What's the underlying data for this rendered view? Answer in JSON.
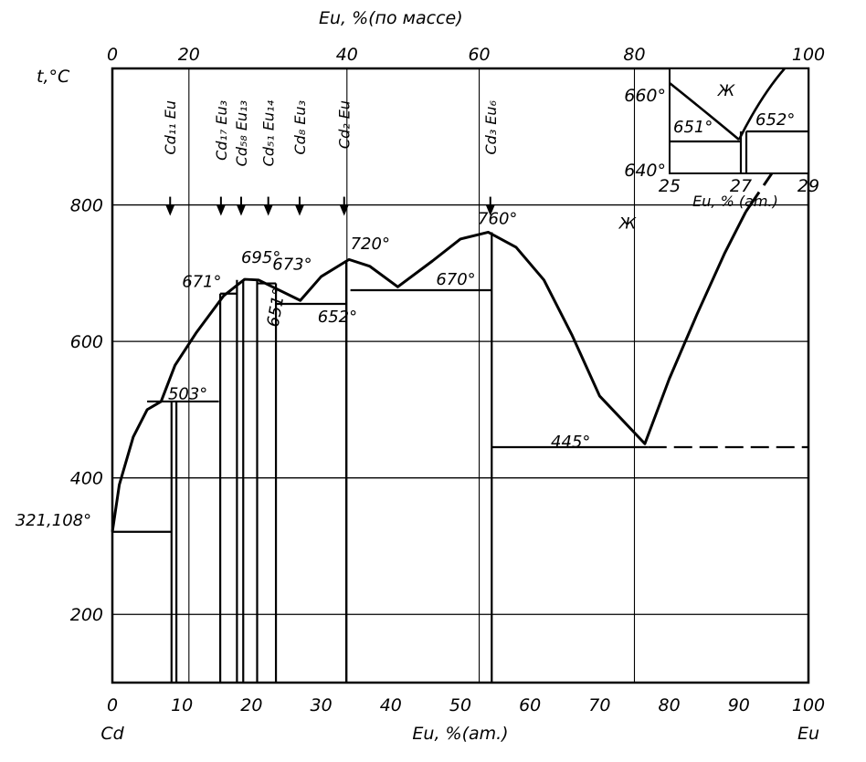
{
  "chart_data": {
    "type": "line",
    "title": "",
    "top_axis_label": "Eu, %(по массе)",
    "xlabel": "Eu, %(am.)",
    "ylabel": "t,°C",
    "x_left_label": "Cd",
    "x_right_label": "Eu",
    "xlim": [
      0,
      100
    ],
    "ylim": [
      100,
      1000
    ],
    "x_ticks": [
      "0",
      "10",
      "20",
      "30",
      "40",
      "50",
      "60",
      "70",
      "80",
      "90",
      "100"
    ],
    "y_ticks": [
      "200",
      "400",
      "600",
      "800"
    ],
    "top_ticks": [
      {
        "at": 0,
        "label": "0"
      },
      {
        "at": 11,
        "label": "20"
      },
      {
        "at": 33.7,
        "label": "40"
      },
      {
        "at": 52.7,
        "label": "60"
      },
      {
        "at": 75,
        "label": "80"
      },
      {
        "at": 100,
        "label": "100"
      }
    ],
    "series": [
      {
        "values": [
          [
            0,
            321
          ],
          [
            1,
            390
          ],
          [
            3,
            460
          ],
          [
            5,
            500
          ],
          [
            7,
            512
          ],
          [
            9,
            565
          ],
          [
            12,
            612
          ],
          [
            16,
            667
          ],
          [
            19,
            691
          ],
          [
            21,
            690
          ],
          [
            23,
            680
          ],
          [
            27,
            660
          ],
          [
            30,
            695
          ],
          [
            34,
            720
          ],
          [
            37,
            710
          ],
          [
            41,
            680
          ],
          [
            46,
            718
          ],
          [
            50,
            750
          ],
          [
            54,
            760
          ],
          [
            58,
            738
          ],
          [
            62,
            690
          ],
          [
            66,
            610
          ],
          [
            70,
            520
          ],
          [
            76.5,
            450
          ],
          [
            80,
            545
          ],
          [
            84,
            640
          ],
          [
            88,
            730
          ],
          [
            91,
            790
          ]
        ]
      },
      {
        "values": [
          [
            91,
            790
          ],
          [
            97,
            880
          ],
          [
            100,
            920
          ]
        ],
        "dashed": true
      }
    ],
    "horizontals": [
      {
        "x": [
          0,
          8.5
        ],
        "y": 321
      },
      {
        "x": [
          5,
          15.3
        ],
        "y": 512
      },
      {
        "x": [
          15.5,
          17.9
        ],
        "y": 670
      },
      {
        "x": [
          20.8,
          23.5
        ],
        "y": 685
      },
      {
        "x": [
          23.5,
          33.6
        ],
        "y": 655
      },
      {
        "x": [
          34.2,
          54.5
        ],
        "y": 675
      },
      {
        "x": [
          54.5,
          77
        ],
        "y": 445
      },
      {
        "x": [
          77,
          100
        ],
        "y": 445,
        "dashed": true
      }
    ],
    "verticals": [
      {
        "x": 8.5,
        "y": [
          100,
          512
        ]
      },
      {
        "x": 9.2,
        "y": [
          100,
          512
        ]
      },
      {
        "x": 15.5,
        "y": [
          100,
          670
        ]
      },
      {
        "x": 17.9,
        "y": [
          100,
          690
        ]
      },
      {
        "x": 18.8,
        "y": [
          100,
          690
        ]
      },
      {
        "x": 20.8,
        "y": [
          100,
          690
        ]
      },
      {
        "x": 23.5,
        "y": [
          100,
          685
        ]
      },
      {
        "x": 33.6,
        "y": [
          100,
          718
        ]
      },
      {
        "x": 54.5,
        "y": [
          100,
          760
        ]
      }
    ],
    "compounds": [
      {
        "x": 8.3,
        "label": "Cd₁₁ Eu"
      },
      {
        "x": 15.6,
        "label": "Cd₁₇ Eu₃"
      },
      {
        "x": 18.5,
        "label": "Cd₅₈ Eu₁₃"
      },
      {
        "x": 22.4,
        "label": "Cd₅₁ Eu₁₄"
      },
      {
        "x": 26.9,
        "label": "Cd₈ Eu₃"
      },
      {
        "x": 33.3,
        "label": "Cd₂ Eu"
      },
      {
        "x": 54.3,
        "label": "Cd₃ Eu₆"
      }
    ],
    "annotations": [
      {
        "x": -3,
        "y": 330,
        "text": "321,108°"
      },
      {
        "x": 8,
        "y": 515,
        "text": "503°"
      },
      {
        "x": 10,
        "y": 680,
        "text": "671°"
      },
      {
        "x": 18.5,
        "y": 715,
        "text": "695°"
      },
      {
        "x": 23,
        "y": 705,
        "text": "673°"
      },
      {
        "x": 29.5,
        "y": 628,
        "text": "652°"
      },
      {
        "x": 34.2,
        "y": 735,
        "text": "720°"
      },
      {
        "x": 46.5,
        "y": 683,
        "text": "670°"
      },
      {
        "x": 52.5,
        "y": 772,
        "text": "760°"
      },
      {
        "x": 63,
        "y": 445,
        "text": "445°"
      },
      {
        "x": 23.8,
        "y": 620,
        "text": "651°",
        "rotate": -80
      }
    ],
    "liquid_label": "Ж",
    "inset": {
      "x_ticks": [
        "25",
        "27",
        "29"
      ],
      "y_ticks": [
        "660°",
        "640°"
      ],
      "xlabel": "Eu, % (am.)",
      "annotations": [
        "651°",
        "652°"
      ],
      "liquid_label": "Ж"
    }
  }
}
